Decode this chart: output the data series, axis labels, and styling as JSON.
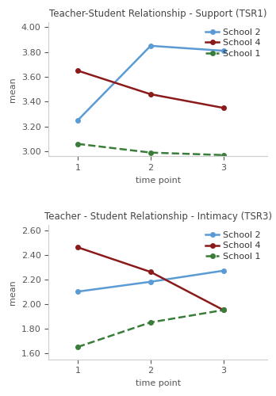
{
  "top": {
    "title": "Teacher-Student Relationship - Support (TSR1)",
    "xlabel": "time point",
    "ylabel": "mean",
    "ylim": [
      2.96,
      4.04
    ],
    "yticks": [
      3.0,
      3.2,
      3.4,
      3.6,
      3.8,
      4.0
    ],
    "xticks": [
      1,
      2,
      3
    ],
    "school2": {
      "x": [
        1,
        2,
        3
      ],
      "y": [
        3.25,
        3.85,
        3.81
      ],
      "color": "#5b9bd5",
      "linestyle": "-",
      "label": "School 2"
    },
    "school4": {
      "x": [
        1,
        2,
        3
      ],
      "y": [
        3.65,
        3.46,
        3.35
      ],
      "color": "#8b1a1a",
      "linestyle": "-",
      "label": "School 4"
    },
    "school1": {
      "x": [
        1,
        2,
        3
      ],
      "y": [
        3.06,
        2.99,
        2.97
      ],
      "color": "#3a7d3a",
      "linestyle": "--",
      "label": "School 1"
    }
  },
  "bottom": {
    "title": "Teacher - Student Relationship - Intimacy (TSR3)",
    "xlabel": "time point",
    "ylabel": "mean",
    "ylim": [
      1.55,
      2.64
    ],
    "yticks": [
      1.6,
      1.8,
      2.0,
      2.2,
      2.4,
      2.6
    ],
    "xticks": [
      1,
      2,
      3
    ],
    "school2": {
      "x": [
        1,
        2,
        3
      ],
      "y": [
        2.1,
        2.18,
        2.27
      ],
      "color": "#5b9bd5",
      "linestyle": "-",
      "label": "School 2"
    },
    "school4": {
      "x": [
        1,
        2,
        3
      ],
      "y": [
        2.46,
        2.26,
        1.95
      ],
      "color": "#8b1a1a",
      "linestyle": "-",
      "label": "School 4"
    },
    "school1": {
      "x": [
        1,
        2,
        3
      ],
      "y": [
        1.65,
        1.85,
        1.95
      ],
      "color": "#3a7d3a",
      "linestyle": "--",
      "label": "School 1"
    }
  },
  "background_color": "#ffffff",
  "linewidth": 1.8,
  "markersize": 4,
  "title_fontsize": 8.5,
  "label_fontsize": 8,
  "tick_fontsize": 8,
  "legend_fontsize": 8
}
